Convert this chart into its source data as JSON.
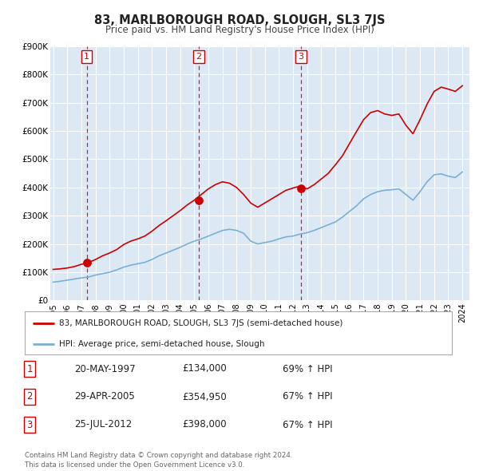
{
  "title": "83, MARLBOROUGH ROAD, SLOUGH, SL3 7JS",
  "subtitle": "Price paid vs. HM Land Registry's House Price Index (HPI)",
  "bg_color": "#dce9f5",
  "grid_color": "#ffffff",
  "red_line_color": "#cc0000",
  "blue_line_color": "#7ab0d4",
  "ylim": [
    0,
    900000
  ],
  "yticks": [
    0,
    100000,
    200000,
    300000,
    400000,
    500000,
    600000,
    700000,
    800000,
    900000
  ],
  "ytick_labels": [
    "£0",
    "£100K",
    "£200K",
    "£300K",
    "£400K",
    "£500K",
    "£600K",
    "£700K",
    "£800K",
    "£900K"
  ],
  "xlim_start": 1994.8,
  "xlim_end": 2024.5,
  "xticks": [
    1995,
    1996,
    1997,
    1998,
    1999,
    2000,
    2001,
    2002,
    2003,
    2004,
    2005,
    2006,
    2007,
    2008,
    2009,
    2010,
    2011,
    2012,
    2013,
    2014,
    2015,
    2016,
    2017,
    2018,
    2019,
    2020,
    2021,
    2022,
    2023,
    2024
  ],
  "sale_dates": [
    1997.38,
    2005.33,
    2012.56
  ],
  "sale_prices": [
    134000,
    354950,
    398000
  ],
  "sale_labels": [
    "1",
    "2",
    "3"
  ],
  "vline_dates": [
    1997.38,
    2005.33,
    2012.56
  ],
  "legend_label_red": "83, MARLBOROUGH ROAD, SLOUGH, SL3 7JS (semi-detached house)",
  "legend_label_blue": "HPI: Average price, semi-detached house, Slough",
  "table_rows": [
    {
      "num": "1",
      "date": "20-MAY-1997",
      "price": "£134,000",
      "hpi": "69% ↑ HPI"
    },
    {
      "num": "2",
      "date": "29-APR-2005",
      "price": "£354,950",
      "hpi": "67% ↑ HPI"
    },
    {
      "num": "3",
      "date": "25-JUL-2012",
      "price": "£398,000",
      "hpi": "67% ↑ HPI"
    }
  ],
  "footer_line1": "Contains HM Land Registry data © Crown copyright and database right 2024.",
  "footer_line2": "This data is licensed under the Open Government Licence v3.0.",
  "hpi_x": [
    1995.0,
    1995.5,
    1996.0,
    1996.5,
    1997.0,
    1997.5,
    1998.0,
    1998.5,
    1999.0,
    1999.5,
    2000.0,
    2000.5,
    2001.0,
    2001.5,
    2002.0,
    2002.5,
    2003.0,
    2003.5,
    2004.0,
    2004.5,
    2005.0,
    2005.5,
    2006.0,
    2006.5,
    2007.0,
    2007.5,
    2008.0,
    2008.5,
    2009.0,
    2009.5,
    2010.0,
    2010.5,
    2011.0,
    2011.5,
    2012.0,
    2012.5,
    2013.0,
    2013.5,
    2014.0,
    2014.5,
    2015.0,
    2015.5,
    2016.0,
    2016.5,
    2017.0,
    2017.5,
    2018.0,
    2018.5,
    2019.0,
    2019.5,
    2020.0,
    2020.5,
    2021.0,
    2021.5,
    2022.0,
    2022.5,
    2023.0,
    2023.5,
    2024.0
  ],
  "hpi_y": [
    65000,
    68000,
    72000,
    76000,
    80000,
    83000,
    90000,
    95000,
    100000,
    108000,
    118000,
    125000,
    130000,
    135000,
    145000,
    158000,
    168000,
    178000,
    188000,
    200000,
    210000,
    218000,
    228000,
    238000,
    248000,
    252000,
    248000,
    238000,
    210000,
    200000,
    205000,
    210000,
    218000,
    225000,
    228000,
    235000,
    240000,
    248000,
    258000,
    268000,
    278000,
    295000,
    315000,
    335000,
    360000,
    375000,
    385000,
    390000,
    392000,
    395000,
    375000,
    355000,
    385000,
    420000,
    445000,
    448000,
    440000,
    435000,
    455000
  ],
  "red_x": [
    1995.0,
    1995.5,
    1996.0,
    1996.5,
    1997.0,
    1997.5,
    1998.0,
    1998.5,
    1999.0,
    1999.5,
    2000.0,
    2000.5,
    2001.0,
    2001.5,
    2002.0,
    2002.5,
    2003.0,
    2003.5,
    2004.0,
    2004.5,
    2005.0,
    2005.5,
    2006.0,
    2006.5,
    2007.0,
    2007.5,
    2008.0,
    2008.5,
    2009.0,
    2009.5,
    2010.0,
    2010.5,
    2011.0,
    2011.5,
    2012.0,
    2012.5,
    2013.0,
    2013.5,
    2014.0,
    2014.5,
    2015.0,
    2015.5,
    2016.0,
    2016.5,
    2017.0,
    2017.5,
    2018.0,
    2018.5,
    2019.0,
    2019.5,
    2020.0,
    2020.5,
    2021.0,
    2021.5,
    2022.0,
    2022.5,
    2023.0,
    2023.5,
    2024.0
  ],
  "red_y": [
    110000,
    112000,
    115000,
    120000,
    128000,
    134000,
    145000,
    158000,
    168000,
    180000,
    198000,
    210000,
    218000,
    228000,
    245000,
    265000,
    282000,
    300000,
    318000,
    338000,
    355000,
    375000,
    395000,
    410000,
    420000,
    415000,
    400000,
    375000,
    345000,
    330000,
    345000,
    360000,
    375000,
    390000,
    398000,
    405000,
    395000,
    410000,
    430000,
    450000,
    480000,
    512000,
    555000,
    598000,
    640000,
    665000,
    672000,
    660000,
    655000,
    660000,
    620000,
    590000,
    640000,
    695000,
    740000,
    755000,
    748000,
    740000,
    760000
  ]
}
